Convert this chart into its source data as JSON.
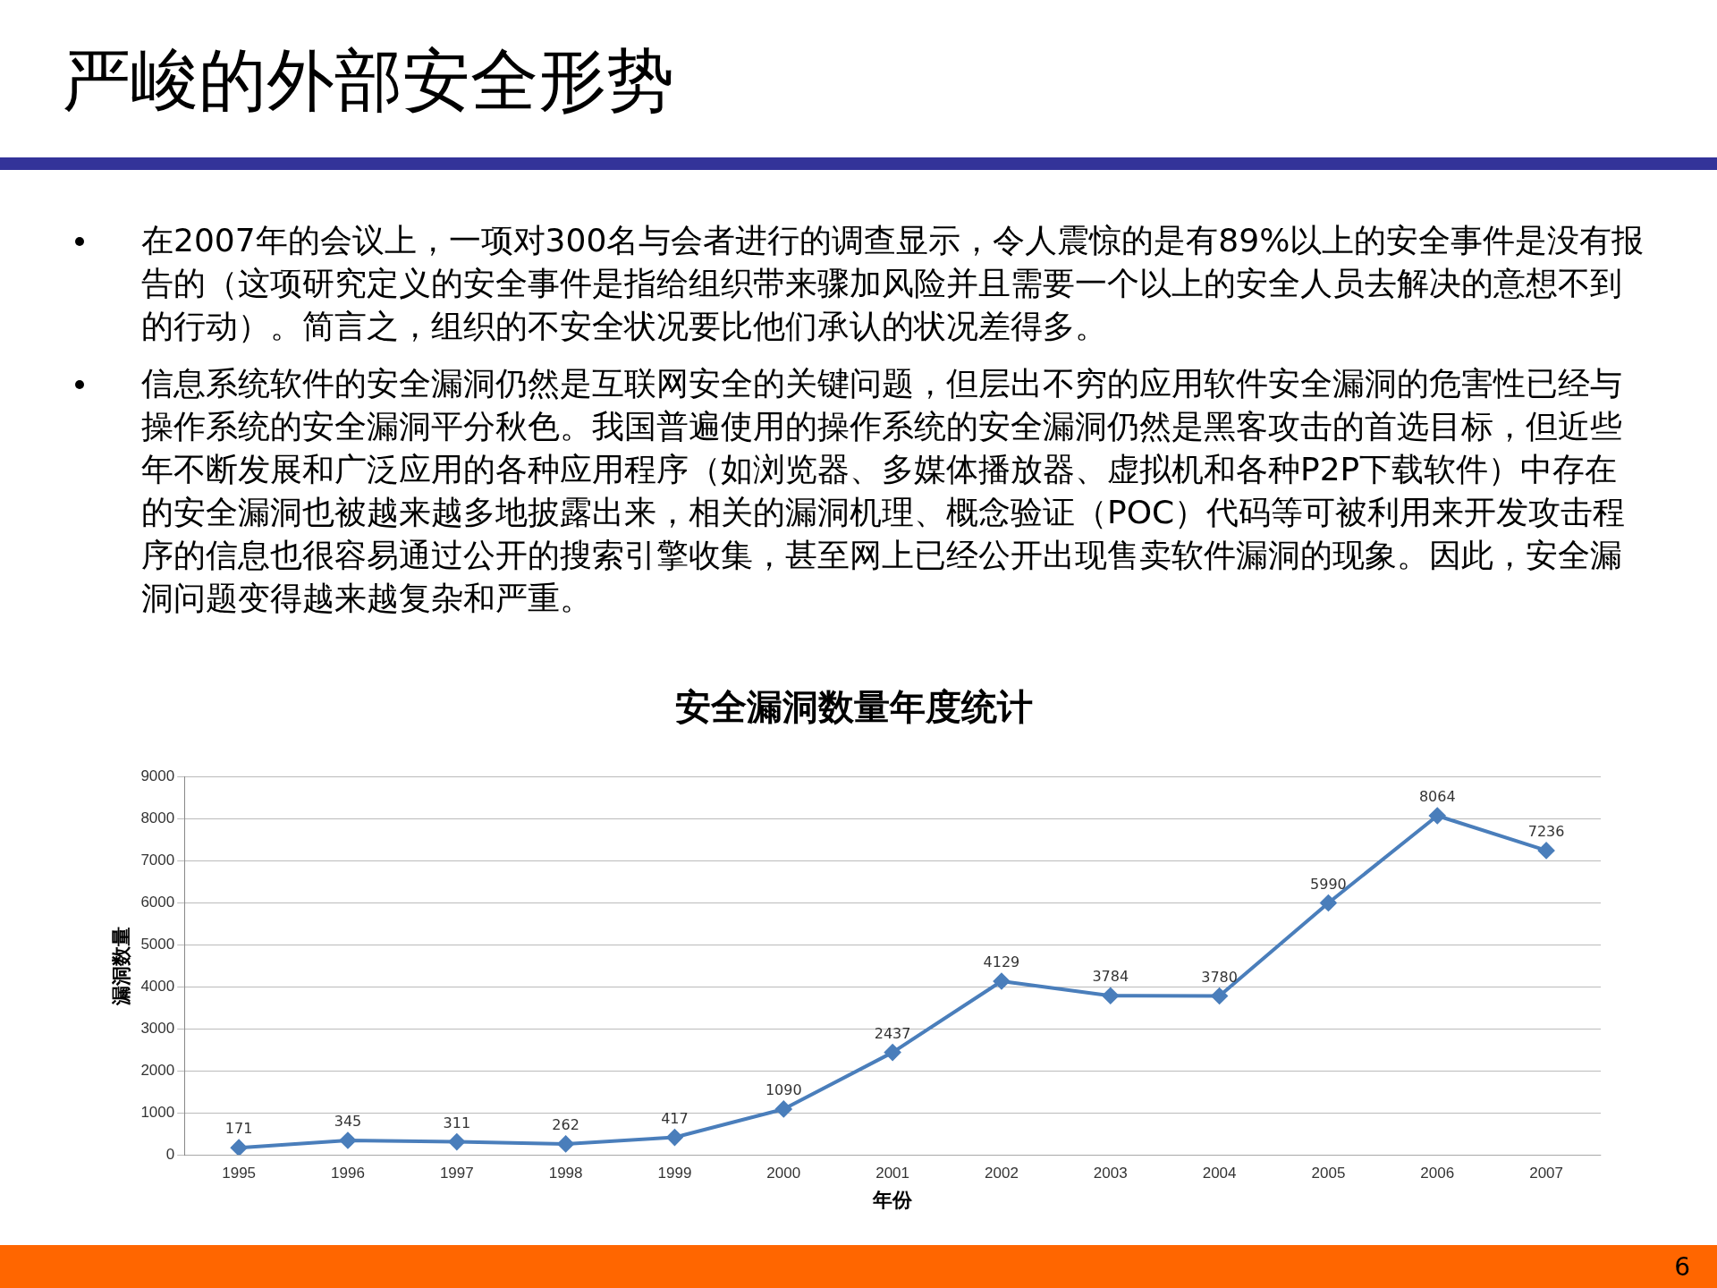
{
  "chart_data": {
    "type": "line",
    "title": "安全漏洞数量年度统计",
    "xlabel": "年份",
    "ylabel": "漏洞数量",
    "categories": [
      "1995",
      "1996",
      "1997",
      "1998",
      "1999",
      "2000",
      "2001",
      "2002",
      "2003",
      "2004",
      "2005",
      "2006",
      "2007"
    ],
    "values": [
      171,
      345,
      311,
      262,
      417,
      1090,
      2437,
      4129,
      3784,
      3780,
      5990,
      8064,
      7236
    ],
    "color": "#4a7ebb",
    "marker": "diamond",
    "line_style": "solid",
    "data_labels": true,
    "grid": "y",
    "legend": false,
    "ylim": [
      0,
      9000
    ],
    "yticks": [
      0,
      1000,
      2000,
      3000,
      4000,
      5000,
      6000,
      7000,
      8000,
      9000
    ],
    "annotations": [
      "严峻的外部安全形势",
      "在2007年的会议上，一项对300名与会者进行的调查显示，令人震惊的是有89%以上的安全事件是没有报告的（这项研究定义的安全事件是指给组织带来骤加风险并且需要一个以上的安全人员去解决的意想不到的行动）。简言之，组织的不安全状况要比他们承认的状况差得多。",
      "信息系统软件的安全漏洞仍然是互联网安全的关键问题，但层出不穷的应用软件安全漏洞的危害性已经与操作系统的安全漏洞平分秋色。我国普遍使用的操作系统的安全漏洞仍然是黑客攻击的首选目标，但近些年不断发展和广泛应用的各种应用程序（如浏览器、多媒体播放器、虚拟机和各种P2P下载软件）中存在的安全漏洞也被越来越多地披露出来，相关的漏洞机理、概念验证（POC）代码等可被利用来开发攻击程序的信息也很容易通过公开的搜索引擎收集，甚至网上已经公开出现售卖软件漏洞的现象。因此，安全漏洞问题变得越来越复杂和严重。",
      "6"
    ]
  }
}
